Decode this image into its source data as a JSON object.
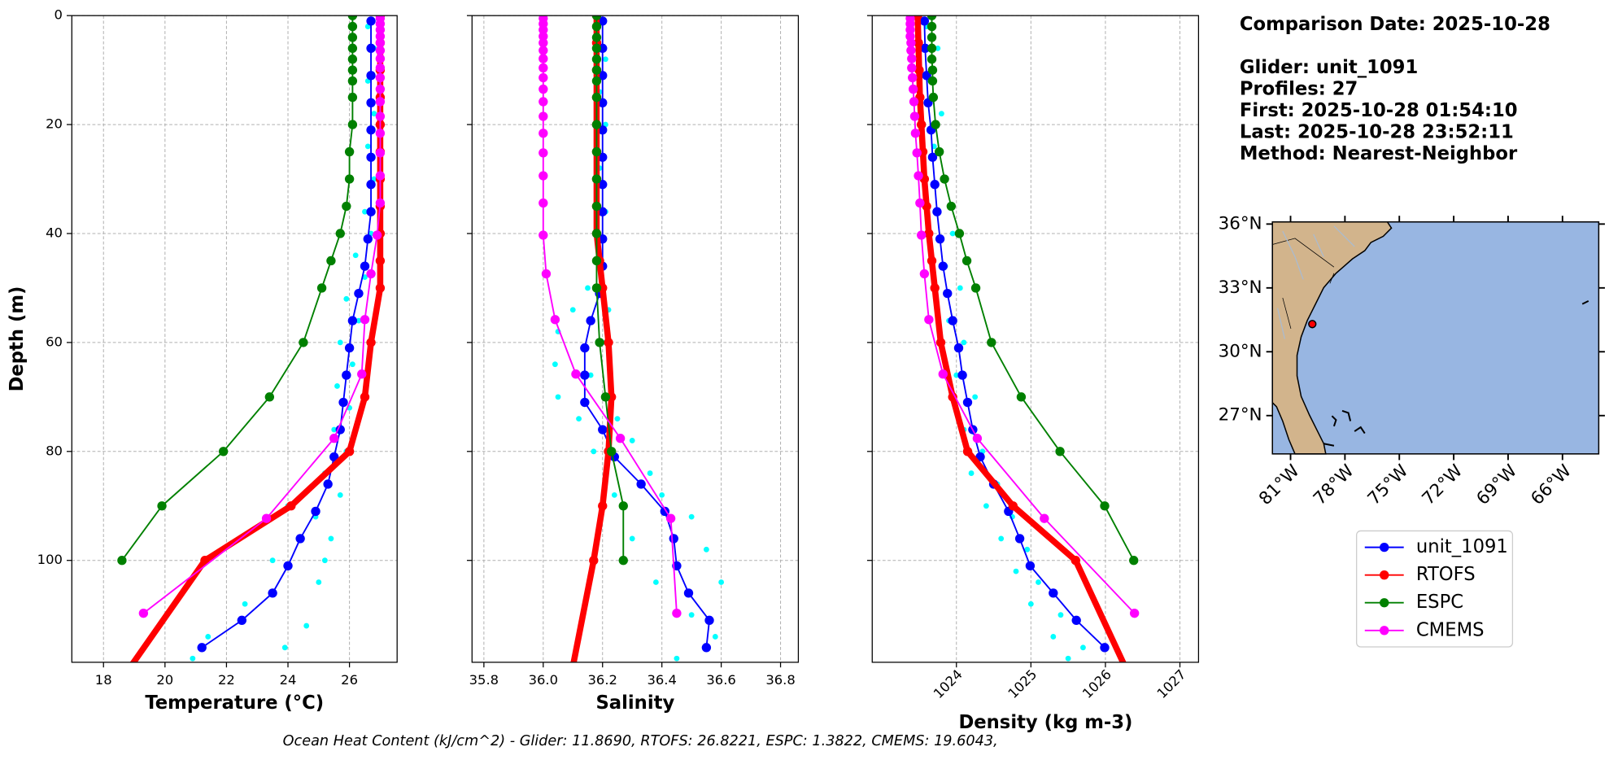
{
  "chart_data": [
    {
      "type": "line",
      "xlabel": "Temperature (°C)",
      "ylabel": "Depth (m)",
      "xlim": [
        16.97,
        27.55
      ],
      "ylim": [
        0,
        118.7
      ],
      "y_inverted": true,
      "grid": true,
      "show_ytick_labels": true,
      "xticks": [
        18,
        20,
        22,
        24,
        26
      ],
      "yticks": [
        0,
        20,
        40,
        60,
        80,
        100
      ],
      "series": [
        {
          "name": "unit_1091",
          "color": "#0000ff",
          "linewidth": 1.5,
          "x": [
            26.7,
            26.7,
            26.7,
            26.7,
            26.7,
            26.7,
            26.7,
            26.7,
            26.6,
            26.5,
            26.3,
            26.1,
            26.0,
            25.9,
            25.8,
            25.7,
            25.5,
            25.3,
            24.9,
            24.4,
            24.0,
            23.5,
            22.5,
            21.2
          ],
          "y": [
            1,
            6,
            11,
            16,
            21,
            26,
            31,
            36,
            41,
            46,
            51,
            56,
            61,
            66,
            71,
            76,
            81,
            86,
            91,
            96,
            101,
            106,
            111,
            116
          ]
        },
        {
          "name": "RTOFS",
          "color": "#ff0000",
          "linewidth": 6,
          "x": [
            27.0,
            27.0,
            27.0,
            27.0,
            27.0,
            27.0,
            27.0,
            27.0,
            27.0,
            27.0,
            27.0,
            26.7,
            26.5,
            26.0,
            24.1,
            21.3,
            18.2
          ],
          "y": [
            0,
            5,
            10,
            15,
            20,
            25,
            30,
            35,
            40,
            45,
            50,
            60,
            70,
            80,
            90,
            100,
            125
          ]
        },
        {
          "name": "ESPC",
          "color": "#008000",
          "linewidth": 1.5,
          "x": [
            26.1,
            26.1,
            26.1,
            26.1,
            26.1,
            26.1,
            26.1,
            26.1,
            26.1,
            26.0,
            26.0,
            25.9,
            25.7,
            25.4,
            25.1,
            24.5,
            23.4,
            21.9,
            19.9,
            18.6
          ],
          "y": [
            0,
            2,
            4,
            6,
            8,
            10,
            12,
            15,
            20,
            25,
            30,
            35,
            40,
            45,
            50,
            60,
            70,
            80,
            90,
            100
          ]
        },
        {
          "name": "CMEMS",
          "color": "#ff00ff",
          "linewidth": 1.5,
          "x": [
            27.0,
            27.0,
            27.0,
            27.0,
            27.0,
            27.0,
            27.0,
            27.0,
            27.0,
            27.0,
            27.0,
            27.0,
            27.0,
            27.0,
            27.0,
            27.0,
            26.9,
            26.7,
            26.5,
            26.4,
            25.5,
            23.3,
            19.3
          ],
          "y": [
            0.5,
            1.5,
            2.6,
            3.8,
            5,
            6.4,
            7.9,
            9.6,
            11.4,
            13.5,
            15.8,
            18.5,
            21.6,
            25.2,
            29.4,
            34.4,
            40.3,
            47.4,
            55.8,
            65.8,
            77.6,
            92.3,
            109.7
          ]
        },
        {
          "color": "#00ffff",
          "x": [
            26.6,
            26.8,
            26.6,
            26.8,
            26.6,
            26.8,
            26.5,
            26.7,
            26.2,
            26.5,
            25.9,
            26.3,
            25.7,
            26.1,
            25.6,
            26.0,
            25.5,
            25.9,
            25.2,
            25.7,
            24.9,
            25.4,
            23.5,
            25.0,
            22.6,
            24.6,
            21.4,
            20.9,
            23.9,
            25.2,
            24.0
          ],
          "y": [
            2,
            6,
            12,
            18,
            24,
            30,
            36,
            40,
            44,
            48,
            52,
            56,
            60,
            64,
            68,
            72,
            76,
            80,
            84,
            88,
            92,
            96,
            100,
            104,
            108,
            112,
            114,
            118,
            116,
            100,
            90
          ]
        }
      ]
    },
    {
      "type": "line",
      "xlabel": "Salinity",
      "xlim": [
        35.76,
        36.86
      ],
      "ylim": [
        0,
        118.7
      ],
      "y_inverted": true,
      "grid": true,
      "show_ytick_labels": false,
      "xticks": [
        35.8,
        {
          "value": 36,
          "label": "36.0"
        },
        36.2,
        36.4,
        36.6,
        36.8
      ],
      "yticks": [
        0,
        20,
        40,
        60,
        80,
        100
      ],
      "series": [
        {
          "name": "unit_1091",
          "color": "#0000ff",
          "linewidth": 1.5,
          "x": [
            36.2,
            36.2,
            36.2,
            36.2,
            36.2,
            36.2,
            36.2,
            36.2,
            36.2,
            36.2,
            36.19,
            36.16,
            36.14,
            36.14,
            36.14,
            36.2,
            36.24,
            36.33,
            36.41,
            36.44,
            36.45,
            36.49,
            36.56,
            36.55
          ],
          "y": [
            1,
            6,
            11,
            16,
            21,
            26,
            31,
            36,
            41,
            46,
            51,
            56,
            61,
            66,
            71,
            76,
            81,
            86,
            91,
            96,
            101,
            106,
            111,
            116
          ]
        },
        {
          "name": "RTOFS",
          "color": "#ff0000",
          "linewidth": 6,
          "x": [
            36.18,
            36.18,
            36.18,
            36.18,
            36.18,
            36.18,
            36.18,
            36.18,
            36.18,
            36.19,
            36.2,
            36.22,
            36.23,
            36.22,
            36.2,
            36.17,
            36.08
          ],
          "y": [
            0,
            5,
            10,
            15,
            20,
            25,
            30,
            35,
            40,
            45,
            50,
            60,
            70,
            80,
            90,
            100,
            125
          ]
        },
        {
          "name": "ESPC",
          "color": "#008000",
          "linewidth": 1.5,
          "x": [
            36.18,
            36.18,
            36.18,
            36.18,
            36.18,
            36.18,
            36.18,
            36.18,
            36.18,
            36.18,
            36.18,
            36.18,
            36.18,
            36.18,
            36.18,
            36.19,
            36.21,
            36.23,
            36.27,
            36.27
          ],
          "y": [
            0,
            2,
            4,
            6,
            8,
            10,
            12,
            15,
            20,
            25,
            30,
            35,
            40,
            45,
            50,
            60,
            70,
            80,
            90,
            100
          ]
        },
        {
          "name": "CMEMS",
          "color": "#ff00ff",
          "linewidth": 1.5,
          "x": [
            36.0,
            36.0,
            36.0,
            36.0,
            36.0,
            36.0,
            36.0,
            36.0,
            36.0,
            36.0,
            36.0,
            36.0,
            36.0,
            36.0,
            36.0,
            36.0,
            36.0,
            36.01,
            36.04,
            36.11,
            36.26,
            36.43,
            36.45
          ],
          "y": [
            0.5,
            1.5,
            2.6,
            3.8,
            5,
            6.4,
            7.9,
            9.6,
            11.4,
            13.5,
            15.8,
            18.5,
            21.6,
            25.2,
            29.4,
            34.4,
            40.3,
            47.4,
            55.8,
            65.8,
            77.6,
            92.3,
            109.7
          ]
        },
        {
          "color": "#00ffff",
          "x": [
            36.18,
            36.21,
            36.19,
            36.21,
            36.19,
            36.21,
            36.19,
            36.15,
            36.1,
            36.22,
            36.05,
            36.2,
            36.04,
            36.16,
            36.05,
            36.22,
            36.12,
            36.25,
            36.3,
            36.17,
            36.36,
            36.24,
            36.4,
            36.3,
            36.5,
            36.55,
            36.6,
            36.38,
            36.5,
            36.58,
            36.45
          ],
          "y": [
            2,
            8,
            14,
            20,
            28,
            36,
            44,
            50,
            54,
            54,
            58,
            60,
            64,
            66,
            70,
            70,
            74,
            74,
            78,
            80,
            84,
            88,
            88,
            96,
            92,
            98,
            104,
            104,
            110,
            114,
            118
          ]
        }
      ]
    },
    {
      "type": "line",
      "xlabel": "Density (kg m-3)",
      "xlim": [
        1022.87,
        1027.25
      ],
      "ylim": [
        0,
        118.7
      ],
      "y_inverted": true,
      "grid": true,
      "show_ytick_labels": false,
      "xticks": [
        1024,
        1025,
        1026,
        1027
      ],
      "yticks": [
        0,
        20,
        40,
        60,
        80,
        100
      ],
      "series": [
        {
          "name": "unit_1091",
          "color": "#0000ff",
          "linewidth": 1.5,
          "x": [
            1023.57,
            1023.58,
            1023.6,
            1023.62,
            1023.66,
            1023.68,
            1023.71,
            1023.74,
            1023.78,
            1023.82,
            1023.88,
            1023.95,
            1024.03,
            1024.08,
            1024.15,
            1024.22,
            1024.32,
            1024.5,
            1024.7,
            1024.85,
            1024.99,
            1025.3,
            1025.61,
            1025.99
          ],
          "y": [
            1,
            6,
            11,
            16,
            21,
            26,
            31,
            36,
            41,
            46,
            51,
            56,
            61,
            66,
            71,
            76,
            81,
            86,
            91,
            96,
            101,
            106,
            111,
            116
          ]
        },
        {
          "name": "RTOFS",
          "color": "#ff0000",
          "linewidth": 6,
          "x": [
            1023.48,
            1023.49,
            1023.5,
            1023.51,
            1023.53,
            1023.55,
            1023.57,
            1023.6,
            1023.63,
            1023.67,
            1023.71,
            1023.79,
            1023.95,
            1024.15,
            1024.76,
            1025.6,
            1026.45
          ],
          "y": [
            0,
            5,
            10,
            15,
            20,
            25,
            30,
            35,
            40,
            45,
            50,
            60,
            70,
            80,
            90,
            100,
            125
          ]
        },
        {
          "name": "ESPC",
          "color": "#008000",
          "linewidth": 1.5,
          "x": [
            1023.67,
            1023.67,
            1023.67,
            1023.67,
            1023.67,
            1023.68,
            1023.68,
            1023.69,
            1023.72,
            1023.77,
            1023.84,
            1023.93,
            1024.04,
            1024.14,
            1024.26,
            1024.47,
            1024.87,
            1025.39,
            1025.99,
            1026.38
          ],
          "y": [
            0,
            2,
            4,
            6,
            8,
            10,
            12,
            15,
            20,
            25,
            30,
            35,
            40,
            45,
            50,
            60,
            70,
            80,
            90,
            100
          ]
        },
        {
          "name": "CMEMS",
          "color": "#ff00ff",
          "linewidth": 1.5,
          "x": [
            1023.38,
            1023.38,
            1023.38,
            1023.38,
            1023.39,
            1023.39,
            1023.4,
            1023.4,
            1023.41,
            1023.42,
            1023.43,
            1023.44,
            1023.45,
            1023.47,
            1023.49,
            1023.51,
            1023.53,
            1023.57,
            1023.63,
            1023.82,
            1024.28,
            1025.18,
            1026.39
          ],
          "y": [
            0.5,
            1.5,
            2.6,
            3.8,
            5,
            6.4,
            7.9,
            9.6,
            11.4,
            13.5,
            15.8,
            18.5,
            21.6,
            25.2,
            29.4,
            34.4,
            40.3,
            47.4,
            55.8,
            65.8,
            77.6,
            92.3,
            109.7
          ]
        },
        {
          "color": "#00ffff",
          "x": [
            1023.6,
            1023.75,
            1023.65,
            1023.8,
            1023.7,
            1023.85,
            1023.75,
            1023.95,
            1023.85,
            1024.05,
            1023.9,
            1024.1,
            1024.0,
            1024.25,
            1024.1,
            1024.35,
            1024.2,
            1024.55,
            1024.4,
            1024.75,
            1024.6,
            1024.95,
            1024.8,
            1025.1,
            1025.0,
            1025.4,
            1025.3,
            1025.7,
            1025.5
          ],
          "y": [
            2,
            6,
            12,
            18,
            24,
            30,
            36,
            40,
            46,
            50,
            56,
            60,
            66,
            70,
            76,
            80,
            84,
            86,
            90,
            92,
            96,
            98,
            102,
            104,
            108,
            110,
            114,
            116,
            118
          ]
        }
      ]
    }
  ],
  "info": {
    "title": "Comparison Date: 2025-10-28",
    "lines": [
      "Glider: unit_1091",
      "Profiles: 27",
      "First: 2025-10-28 01:54:10",
      "Last: 2025-10-28 23:52:11",
      "Method: Nearest-Neighbor"
    ]
  },
  "map": {
    "lonlim": [
      -82,
      -64
    ],
    "latlim": [
      25.2,
      36.1
    ],
    "lat_ticks": [
      {
        "value": 36,
        "label": "36°N"
      },
      {
        "value": 33,
        "label": "33°N"
      },
      {
        "value": 30,
        "label": "30°N"
      },
      {
        "value": 27,
        "label": "27°N"
      }
    ],
    "lon_ticks": [
      {
        "value": -81,
        "label": "81°W"
      },
      {
        "value": -78,
        "label": "78°W"
      },
      {
        "value": -75,
        "label": "75°W"
      },
      {
        "value": -72,
        "label": "72°W"
      },
      {
        "value": -69,
        "label": "69°W"
      },
      {
        "value": -66,
        "label": "66°W"
      }
    ],
    "glider": {
      "lon": -79.8,
      "lat": 31.3
    }
  },
  "footer": "Ocean Heat Content (kJ/cm^2) - Glider: 11.8690,  RTOFS: 26.8221,  ESPC: 1.3822,  CMEMS: 19.6043,"
}
